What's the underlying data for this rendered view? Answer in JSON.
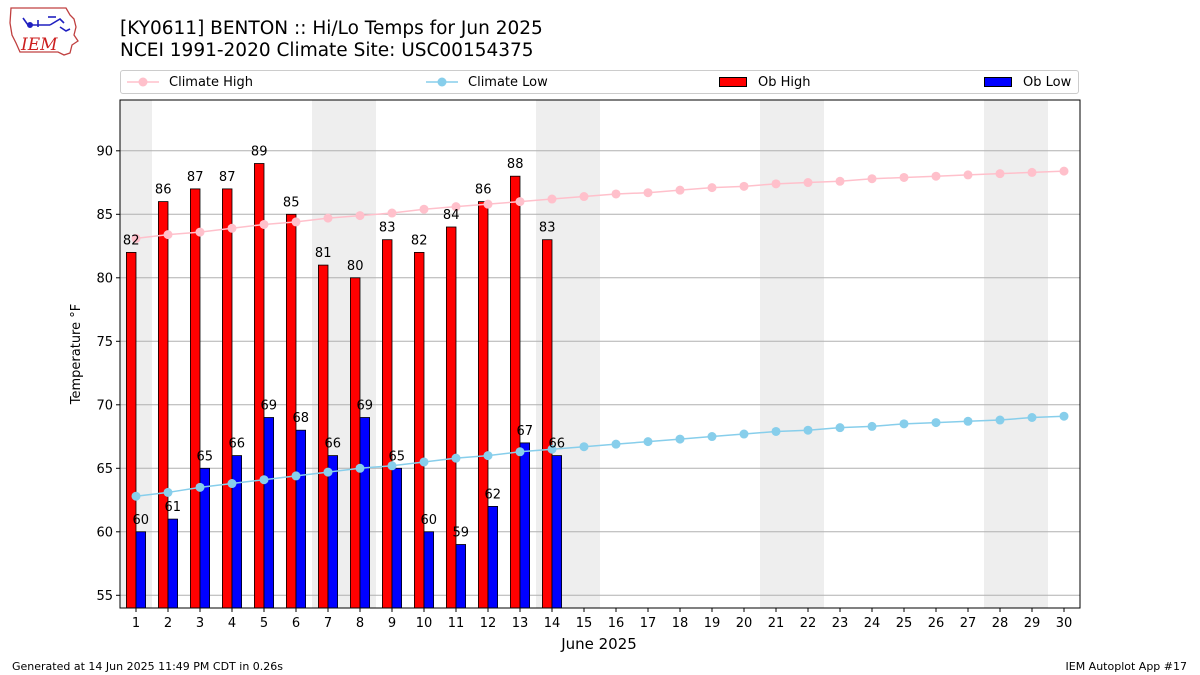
{
  "header": {
    "title_line1": "[KY0611] BENTON :: Hi/Lo Temps for Jun 2025",
    "title_line2": "NCEI 1991-2020 Climate Site: USC00154375",
    "logo_text": "IEM"
  },
  "footer": {
    "generated": "Generated at 14 Jun 2025 11:49 PM CDT in 0.26s",
    "app": "IEM Autoplot App #17"
  },
  "legend": {
    "climate_high": "Climate High",
    "climate_low": "Climate Low",
    "ob_high": "Ob High",
    "ob_low": "Ob Low"
  },
  "colors": {
    "ob_high": "#ff0000",
    "ob_low": "#0000ff",
    "climate_high": "#ffc0cb",
    "climate_low": "#87ceeb",
    "weekend_band": "#eeeeee",
    "grid": "#b0b0b0"
  },
  "chart_data": {
    "type": "bar",
    "xlabel": "June 2025",
    "ylabel": "Temperature °F",
    "ylim": [
      54,
      94
    ],
    "xlim": [
      0.5,
      30.5
    ],
    "yticks": [
      55,
      60,
      65,
      70,
      75,
      80,
      85,
      90
    ],
    "categories": [
      "1",
      "2",
      "3",
      "4",
      "5",
      "6",
      "7",
      "8",
      "9",
      "10",
      "11",
      "12",
      "13",
      "14",
      "15",
      "16",
      "17",
      "18",
      "19",
      "20",
      "21",
      "22",
      "23",
      "24",
      "25",
      "26",
      "27",
      "28",
      "29",
      "30"
    ],
    "grid": "horizontal",
    "legend_position": "top",
    "weekend_bands": [
      [
        1,
        1
      ],
      [
        7,
        8
      ],
      [
        14,
        15
      ],
      [
        21,
        22
      ],
      [
        28,
        29
      ]
    ],
    "series": [
      {
        "name": "Ob High",
        "kind": "bar",
        "values": [
          82,
          86,
          87,
          87,
          89,
          85,
          81,
          80,
          83,
          82,
          84,
          86,
          88,
          83,
          null,
          null,
          null,
          null,
          null,
          null,
          null,
          null,
          null,
          null,
          null,
          null,
          null,
          null,
          null,
          null
        ]
      },
      {
        "name": "Ob Low",
        "kind": "bar",
        "values": [
          60,
          61,
          65,
          66,
          69,
          68,
          66,
          69,
          65,
          60,
          59,
          62,
          67,
          66,
          null,
          null,
          null,
          null,
          null,
          null,
          null,
          null,
          null,
          null,
          null,
          null,
          null,
          null,
          null,
          null
        ]
      },
      {
        "name": "Climate High",
        "kind": "line",
        "values": [
          83.1,
          83.4,
          83.6,
          83.9,
          84.2,
          84.4,
          84.7,
          84.9,
          85.1,
          85.4,
          85.6,
          85.8,
          86.0,
          86.2,
          86.4,
          86.6,
          86.7,
          86.9,
          87.1,
          87.2,
          87.4,
          87.5,
          87.6,
          87.8,
          87.9,
          88.0,
          88.1,
          88.2,
          88.3,
          88.4
        ]
      },
      {
        "name": "Climate Low",
        "kind": "line",
        "values": [
          62.8,
          63.1,
          63.5,
          63.8,
          64.1,
          64.4,
          64.7,
          65.0,
          65.2,
          65.5,
          65.8,
          66.0,
          66.3,
          66.5,
          66.7,
          66.9,
          67.1,
          67.3,
          67.5,
          67.7,
          67.9,
          68.0,
          68.2,
          68.3,
          68.5,
          68.6,
          68.7,
          68.8,
          69.0,
          69.1
        ]
      }
    ]
  }
}
